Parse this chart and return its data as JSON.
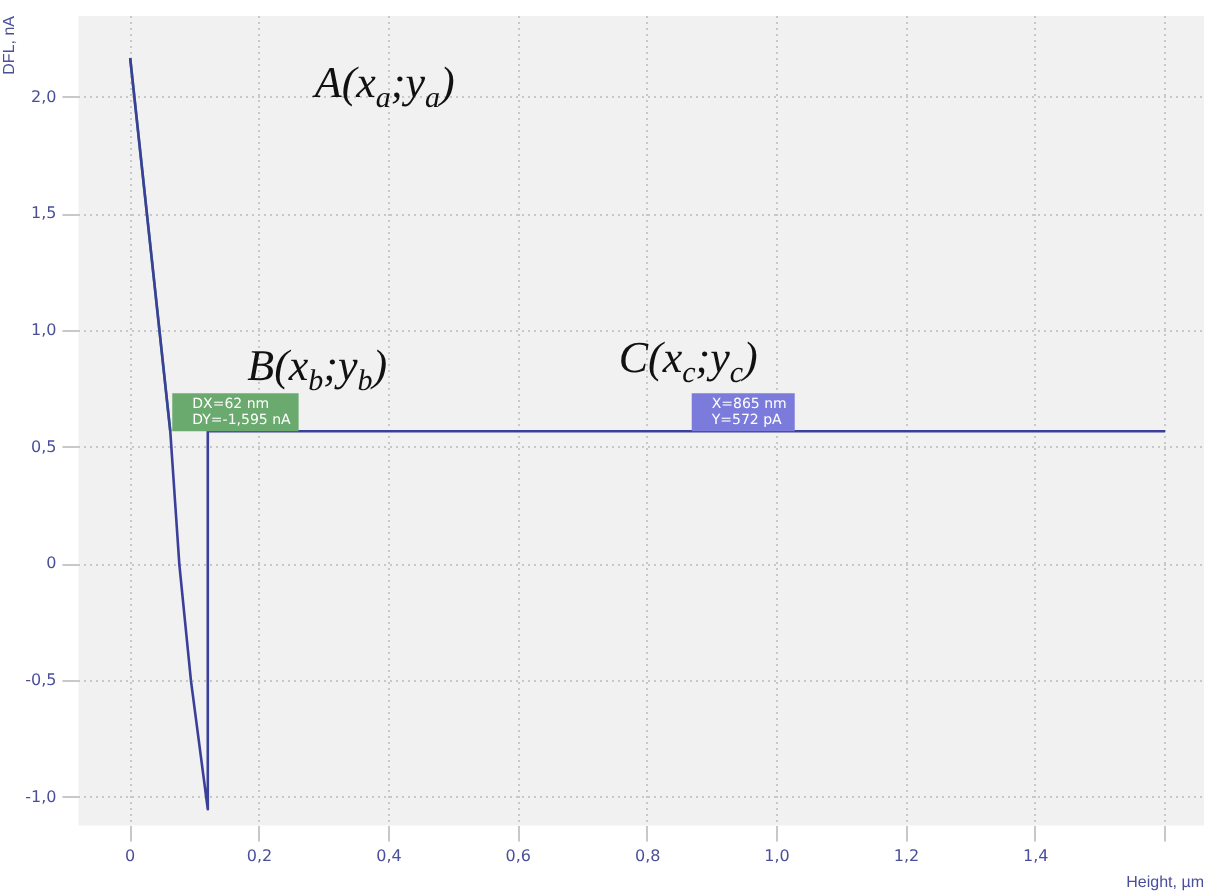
{
  "chart_data": {
    "type": "line",
    "xlabel": "Height, µm",
    "ylabel": "DFL, nA",
    "xlim": [
      -0.08,
      1.66
    ],
    "ylim": [
      -1.12,
      2.35
    ],
    "xticks": [
      0,
      {
        "value": 0.2,
        "label": "0,2"
      },
      {
        "value": 0.4,
        "label": "0,4"
      },
      {
        "value": 0.6,
        "label": "0,6"
      },
      {
        "value": 0.8,
        "label": "0,8"
      },
      {
        "value": 1,
        "label": "1,0"
      },
      {
        "value": 1.2,
        "label": "1,2"
      },
      {
        "value": 1.4,
        "label": "1,4"
      },
      {
        "value": 1.6,
        "label": null
      }
    ],
    "yticks": [
      {
        "value": -1,
        "label": "-1,0"
      },
      {
        "value": -0.5,
        "label": "-0,5"
      },
      0,
      {
        "value": 0.5,
        "label": "0,5"
      },
      {
        "value": 1,
        "label": "1,0"
      },
      {
        "value": 1.5,
        "label": "1,5"
      },
      {
        "value": 2,
        "label": "2,0"
      }
    ],
    "grid": true,
    "legend": false,
    "marker": "none",
    "line_style": "solid",
    "series": [
      {
        "color": "#3a3f9a",
        "x": [
          0,
          0.062,
          0.076,
          0.094,
          0.12,
          0.12,
          1.6
        ],
        "values": [
          2.17,
          0.57,
          0,
          -0.5,
          -1.05,
          0.57,
          0.57
        ]
      },
      {
        "color": "#4f9a6e",
        "x": [
          0,
          0.062
        ],
        "values": [
          2.17,
          0.57
        ]
      }
    ],
    "annotations": [
      "A(x$_{a}$;y$_{a}$)",
      "B(x$_{b}$;y$_{b}$)",
      "C(x$_{c}$;y$_{c}$)",
      {
        "text": "DX=62 nm\nDY=-1,595 nA",
        "x": 0.062,
        "y": 0.57
      },
      {
        "text": "X=865 nm\nY=572 pA",
        "x": 0.865,
        "y": 0.57
      }
    ]
  }
}
